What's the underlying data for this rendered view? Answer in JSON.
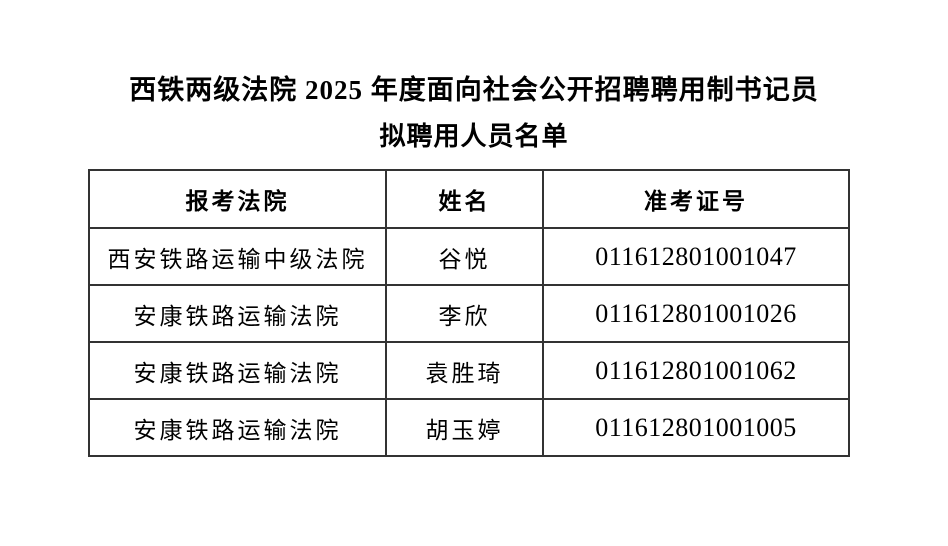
{
  "document": {
    "title_line1": "西铁两级法院 2025 年度面向社会公开招聘聘用制书记员",
    "title_line2": "拟聘用人员名单"
  },
  "table": {
    "headers": {
      "court": "报考法院",
      "name": "姓名",
      "ticket": "准考证号"
    },
    "rows": [
      {
        "court": "西安铁路运输中级法院",
        "name": "谷悦",
        "ticket": "011612801001047"
      },
      {
        "court": "安康铁路运输法院",
        "name": "李欣",
        "ticket": "011612801001026"
      },
      {
        "court": "安康铁路运输法院",
        "name": "袁胜琦",
        "ticket": "011612801001062"
      },
      {
        "court": "安康铁路运输法院",
        "name": "胡玉婷",
        "ticket": "011612801001005"
      }
    ]
  },
  "colors": {
    "text": "#000000",
    "border": "#333333",
    "background": "#ffffff"
  }
}
